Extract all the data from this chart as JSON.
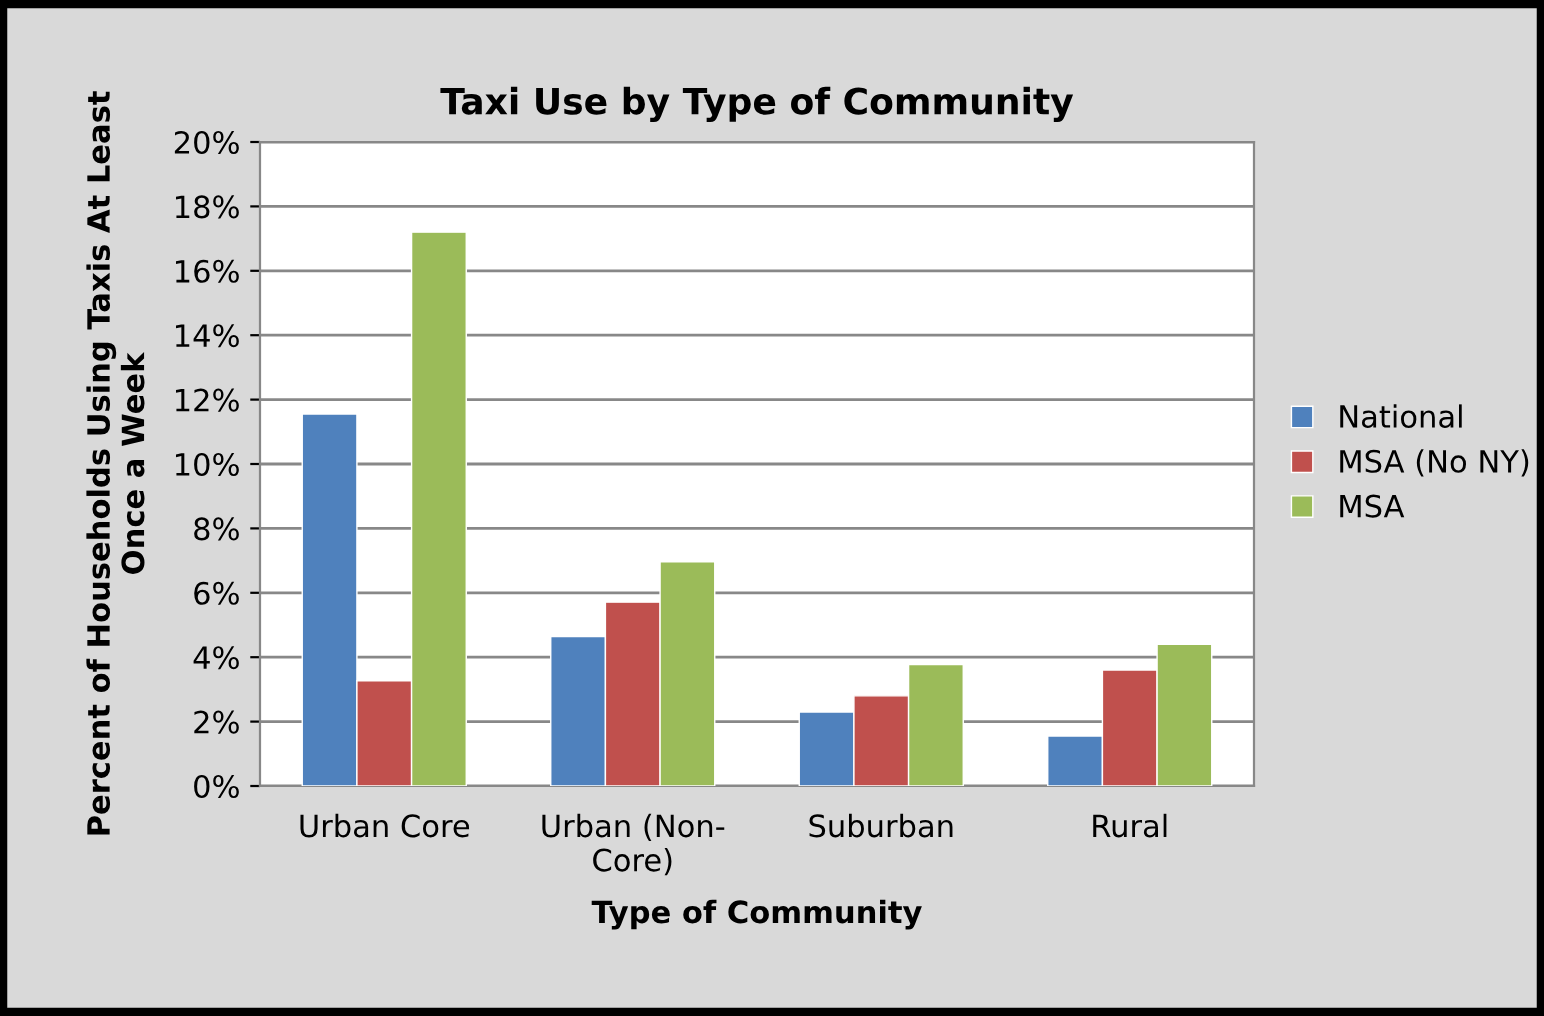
{
  "chart_data": {
    "type": "bar",
    "title": "Taxi Use by Type of Community",
    "xlabel": "Type of Community",
    "ylabel": "Percent of Households Using Taxis At Least\nOnce a Week",
    "categories": [
      "Urban Core",
      "Urban (Non-\nCore)",
      "Suburban",
      "Rural"
    ],
    "series": [
      {
        "name": "National",
        "color": "#4f81bd",
        "values": [
          11.55,
          4.64,
          2.3,
          1.55
        ]
      },
      {
        "name": "MSA (No NY)",
        "color": "#c0504d",
        "values": [
          3.27,
          5.71,
          2.8,
          3.6
        ]
      },
      {
        "name": "MSA",
        "color": "#9bbb59",
        "values": [
          17.2,
          6.96,
          3.77,
          4.4
        ]
      }
    ],
    "ylim": [
      0,
      20
    ],
    "yticks": [
      {
        "value": 0,
        "label": "0%"
      },
      {
        "value": 2,
        "label": "2%"
      },
      {
        "value": 4,
        "label": "4%"
      },
      {
        "value": 6,
        "label": "6%"
      },
      {
        "value": 8,
        "label": "8%"
      },
      {
        "value": 10,
        "label": "10%"
      },
      {
        "value": 12,
        "label": "12%"
      },
      {
        "value": 14,
        "label": "14%"
      },
      {
        "value": 16,
        "label": "16%"
      },
      {
        "value": 18,
        "label": "18%"
      },
      {
        "value": 20,
        "label": "20%"
      }
    ],
    "grid": "y",
    "legend": "right"
  }
}
